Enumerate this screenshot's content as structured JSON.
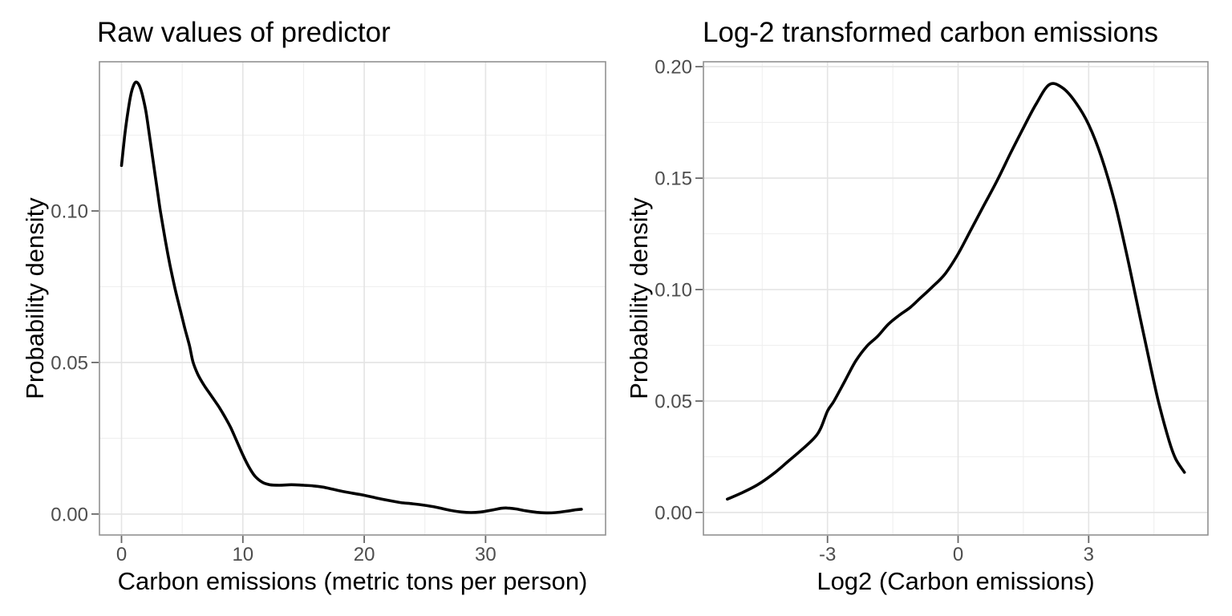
{
  "figure": {
    "description": "Two side-by-side kernel density plots comparing raw and log2-transformed carbon emissions",
    "background_color": "#ffffff"
  },
  "style": {
    "curve_color": "#000000",
    "grid_major_color": "#e4e4e4",
    "grid_minor_color": "#efefef",
    "panel_border_color": "#919191",
    "tick_mark_color": "#666666",
    "tick_label_color": "#4d4d4d",
    "title_color": "#000000",
    "axis_title_color": "#000000"
  },
  "chart_data": [
    {
      "type": "line",
      "subtype": "density-curve",
      "title": "Raw values of predictor",
      "xlabel": "Carbon emissions (metric tons per person)",
      "ylabel": "Probability density",
      "xlim": [
        -1.82,
        39.89
      ],
      "ylim": [
        -0.0069,
        0.1492
      ],
      "grid": true,
      "legend": "none",
      "x_ticks": {
        "values": [
          0,
          10,
          20,
          30
        ],
        "labels": [
          "0",
          "10",
          "20",
          "30"
        ],
        "minor": [
          5,
          15,
          25,
          35
        ]
      },
      "y_ticks": {
        "values": [
          0,
          0.05,
          0.1
        ],
        "labels": [
          "0.00",
          "0.05",
          "0.10"
        ],
        "minor": [
          0.025,
          0.075,
          0.125
        ]
      },
      "series": [
        {
          "name": "density",
          "x": [
            0,
            0.25,
            0.5,
            0.75,
            1.0,
            1.2,
            1.45,
            1.7,
            2.0,
            2.3,
            2.6,
            3.0,
            3.2,
            3.6,
            4.0,
            4.4,
            4.8,
            5.2,
            5.6,
            5.9,
            6.3,
            6.8,
            7.4,
            8.0,
            8.5,
            9.0,
            9.5,
            10.0,
            10.5,
            11.0,
            11.6,
            12.2,
            13.0,
            14.0,
            15.0,
            15.8,
            16.6,
            17.4,
            18.2,
            19.0,
            20.0,
            21.0,
            22.0,
            23.0,
            24.0,
            25.0,
            26.0,
            27.0,
            28.0,
            28.8,
            29.6,
            30.5,
            31.3,
            31.8,
            32.5,
            33.3,
            34.2,
            35.0,
            35.8,
            36.6,
            37.4,
            37.9
          ],
          "y": [
            0.115,
            0.1245,
            0.132,
            0.138,
            0.1415,
            0.1425,
            0.1415,
            0.1385,
            0.133,
            0.125,
            0.1165,
            0.1055,
            0.1,
            0.0905,
            0.082,
            0.0745,
            0.068,
            0.0615,
            0.0555,
            0.05,
            0.046,
            0.0425,
            0.039,
            0.0355,
            0.0322,
            0.0285,
            0.024,
            0.0195,
            0.0155,
            0.0125,
            0.0105,
            0.0097,
            0.0095,
            0.0097,
            0.0095,
            0.0093,
            0.0089,
            0.0082,
            0.0075,
            0.0069,
            0.0062,
            0.0053,
            0.0045,
            0.0038,
            0.0034,
            0.0029,
            0.0022,
            0.0013,
            0.0007,
            0.0005,
            0.0007,
            0.0013,
            0.0019,
            0.002,
            0.0017,
            0.0011,
            0.0006,
            0.0004,
            0.0005,
            0.0009,
            0.0014,
            0.0016
          ]
        }
      ]
    },
    {
      "type": "line",
      "subtype": "density-curve",
      "title": "Log-2 transformed carbon emissions",
      "xlabel": "Log2 (Carbon emissions)",
      "ylabel": "Probability density",
      "xlim": [
        -5.85,
        5.74
      ],
      "ylim": [
        -0.0101,
        0.2022
      ],
      "grid": true,
      "legend": "none",
      "x_ticks": {
        "values": [
          -3,
          0,
          3
        ],
        "labels": [
          "-3",
          "0",
          "3"
        ],
        "minor": [
          -4.5,
          -1.5,
          1.5,
          4.5
        ]
      },
      "y_ticks": {
        "values": [
          0,
          0.05,
          0.1,
          0.15,
          0.2
        ],
        "labels": [
          "0.00",
          "0.05",
          "0.10",
          "0.15",
          "0.20"
        ],
        "minor": [
          0.025,
          0.075,
          0.125,
          0.175
        ]
      },
      "series": [
        {
          "name": "density",
          "x": [
            -5.3,
            -5.0,
            -4.6,
            -4.2,
            -3.9,
            -3.6,
            -3.3,
            -3.15,
            -3.0,
            -2.85,
            -2.6,
            -2.35,
            -2.1,
            -1.85,
            -1.6,
            -1.35,
            -1.1,
            -0.85,
            -0.6,
            -0.3,
            0,
            0.3,
            0.6,
            0.9,
            1.2,
            1.5,
            1.8,
            2.1,
            2.4,
            2.7,
            3.0,
            3.3,
            3.6,
            3.85,
            4.1,
            4.35,
            4.6,
            4.85,
            5.0,
            5.2
          ],
          "y": [
            0.006,
            0.0085,
            0.0125,
            0.018,
            0.023,
            0.028,
            0.0335,
            0.038,
            0.0455,
            0.05,
            0.059,
            0.068,
            0.0745,
            0.079,
            0.0845,
            0.0885,
            0.092,
            0.0965,
            0.101,
            0.107,
            0.116,
            0.127,
            0.138,
            0.149,
            0.161,
            0.1725,
            0.1835,
            0.192,
            0.1905,
            0.184,
            0.174,
            0.159,
            0.139,
            0.118,
            0.095,
            0.072,
            0.05,
            0.032,
            0.024,
            0.018
          ]
        }
      ]
    }
  ]
}
